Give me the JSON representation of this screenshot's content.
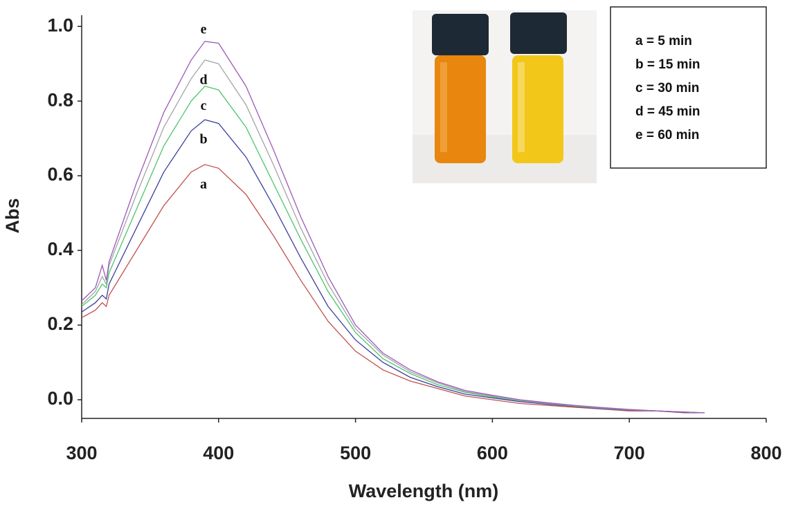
{
  "chart_data": {
    "type": "line",
    "xlabel": "Wavelength (nm)",
    "ylabel": "Abs",
    "x": [
      300,
      310,
      315,
      318,
      320,
      340,
      360,
      380,
      390,
      400,
      420,
      440,
      460,
      480,
      500,
      520,
      540,
      560,
      580,
      600,
      620,
      640,
      660,
      680,
      700,
      720,
      740,
      755
    ],
    "series": [
      {
        "name": "a = 5 min",
        "color": "#c0504d",
        "values": [
          0.22,
          0.24,
          0.26,
          0.25,
          0.28,
          0.4,
          0.52,
          0.61,
          0.63,
          0.62,
          0.55,
          0.44,
          0.32,
          0.21,
          0.13,
          0.08,
          0.05,
          0.03,
          0.01,
          0.0,
          -0.01,
          -0.015,
          -0.02,
          -0.025,
          -0.03,
          -0.03,
          -0.035,
          -0.035
        ]
      },
      {
        "name": "b = 15 min",
        "color": "#3b3f9c",
        "values": [
          0.235,
          0.26,
          0.28,
          0.27,
          0.31,
          0.46,
          0.61,
          0.72,
          0.75,
          0.74,
          0.65,
          0.52,
          0.38,
          0.25,
          0.16,
          0.1,
          0.06,
          0.035,
          0.015,
          0.005,
          -0.005,
          -0.012,
          -0.018,
          -0.024,
          -0.028,
          -0.03,
          -0.034,
          -0.035
        ]
      },
      {
        "name": "c = 30 min",
        "color": "#4cc46a",
        "values": [
          0.25,
          0.28,
          0.31,
          0.3,
          0.34,
          0.51,
          0.68,
          0.8,
          0.84,
          0.83,
          0.73,
          0.58,
          0.43,
          0.29,
          0.18,
          0.11,
          0.07,
          0.04,
          0.02,
          0.008,
          -0.003,
          -0.01,
          -0.017,
          -0.023,
          -0.027,
          -0.03,
          -0.033,
          -0.035
        ]
      },
      {
        "name": "d = 45 min",
        "color": "#a3a3a8",
        "values": [
          0.255,
          0.29,
          0.33,
          0.31,
          0.36,
          0.55,
          0.73,
          0.86,
          0.91,
          0.9,
          0.79,
          0.63,
          0.46,
          0.31,
          0.19,
          0.12,
          0.075,
          0.045,
          0.022,
          0.01,
          -0.002,
          -0.01,
          -0.016,
          -0.022,
          -0.027,
          -0.03,
          -0.033,
          -0.035
        ]
      },
      {
        "name": "e = 60 min",
        "color": "#9b59b6",
        "values": [
          0.265,
          0.3,
          0.36,
          0.32,
          0.37,
          0.58,
          0.77,
          0.91,
          0.96,
          0.955,
          0.84,
          0.67,
          0.49,
          0.33,
          0.2,
          0.125,
          0.08,
          0.048,
          0.025,
          0.012,
          0.0,
          -0.008,
          -0.015,
          -0.021,
          -0.026,
          -0.03,
          -0.033,
          -0.035
        ]
      }
    ],
    "annotations": [
      "a",
      "b",
      "c",
      "d",
      "e"
    ],
    "xlim": [
      300,
      800
    ],
    "xticks": [
      300,
      400,
      500,
      600,
      700,
      800
    ],
    "ylim": [
      -0.05,
      1.03
    ],
    "yticks": [
      {
        "value": 0,
        "label": "0.0"
      },
      0.2,
      0.4,
      0.6,
      0.8,
      {
        "value": 1,
        "label": "1.0"
      }
    ],
    "grid": false,
    "legend": "upper right"
  }
}
